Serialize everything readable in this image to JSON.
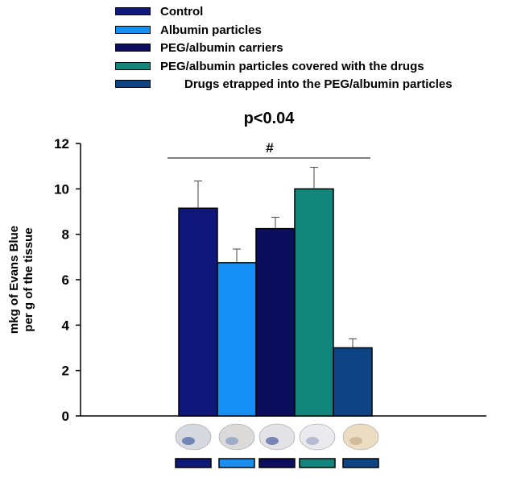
{
  "chart_data": {
    "type": "bar",
    "annotation_p": "p<0.04",
    "annotation_sig": "#",
    "ylabel_line1": "mkg of Evans Blue",
    "ylabel_line2": "per g of the tissue",
    "ylim": [
      0,
      12
    ],
    "yticks": [
      0,
      2,
      4,
      6,
      8,
      10,
      12
    ],
    "series": [
      {
        "name": "Control",
        "value": 9.15,
        "error": 1.2,
        "color": "#10177a"
      },
      {
        "name": "Albumin particles",
        "value": 6.75,
        "error": 0.6,
        "color": "#168ff5"
      },
      {
        "name": "PEG/albumin carriers",
        "value": 8.25,
        "error": 0.5,
        "color": "#0c0d5c"
      },
      {
        "name": "PEG/albumin particles covered with the  drugs",
        "value": 10.0,
        "error": 0.95,
        "color": "#13867c"
      },
      {
        "name": "Drugs  etrapped into the PEG/albumin particles",
        "value": 3.0,
        "error": 0.4,
        "color": "#0f4484"
      }
    ],
    "tissue_images": [
      "brain-tissue-image-control",
      "brain-tissue-image-albumin",
      "brain-tissue-image-peg-carriers",
      "brain-tissue-image-covered",
      "brain-tissue-image-entrapped"
    ]
  }
}
